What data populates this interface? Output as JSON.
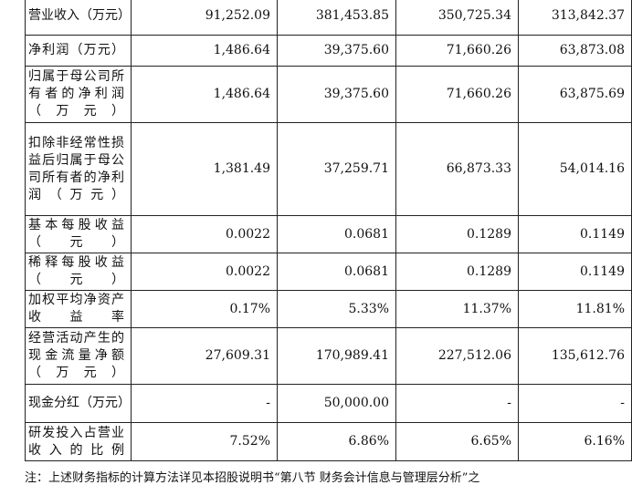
{
  "rows": [
    {
      "label": "营业收入（万元）",
      "values": [
        "91,252.09",
        "381,453.85",
        "350,725.34",
        "313,842.37"
      ]
    },
    {
      "label": "净利润（万元）",
      "values": [
        "1,486.64",
        "39,375.60",
        "71,660.26",
        "63,873.08"
      ]
    },
    {
      "label": "归属于母公司所有者的净利润（万元）",
      "values": [
        "1,486.64",
        "39,375.60",
        "71,660.26",
        "63,875.69"
      ]
    },
    {
      "label": "扣除非经常性损益后归属于母公司所有者的净利润（万元）",
      "values": [
        "1,381.49",
        "37,259.71",
        "66,873.33",
        "54,014.16"
      ]
    },
    {
      "label": "基本每股收益（元）",
      "values": [
        "0.0022",
        "0.0681",
        "0.1289",
        "0.1149"
      ]
    },
    {
      "label": "稀释每股收益（元）",
      "values": [
        "0.0022",
        "0.0681",
        "0.1289",
        "0.1149"
      ]
    },
    {
      "label": "加权平均净资产收益率",
      "values": [
        "0.17%",
        "5.33%",
        "11.37%",
        "11.81%"
      ]
    },
    {
      "label": "经营活动产生的现金流量净额（万元）",
      "values": [
        "27,609.31",
        "170,989.41",
        "227,512.06",
        "135,612.76"
      ]
    },
    {
      "label": "现金分红（万元）",
      "values": [
        "-",
        "50,000.00",
        "-",
        "-"
      ]
    },
    {
      "label": "研发投入占营业收入的比例",
      "values": [
        "7.52%",
        "6.86%",
        "6.65%",
        "6.16%"
      ]
    }
  ],
  "footnote": "注：上述财务指标的计算方法详见本招股说明书“第八节 财务会计信息与管理层分析”之"
}
